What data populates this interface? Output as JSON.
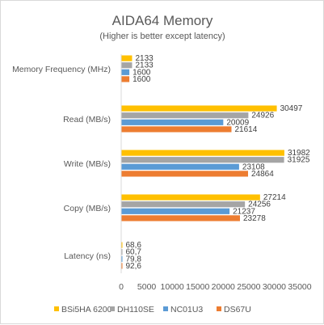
{
  "chart_data": {
    "type": "bar",
    "orientation": "horizontal",
    "title": "AIDA64 Memory",
    "subtitle": "(Higher is better except latency)",
    "categories": [
      "Memory Frequency (MHz)",
      "Read (MB/s)",
      "Write (MB/s)",
      "Copy (MB/s)",
      "Latency (ns)"
    ],
    "series": [
      {
        "name": "BSi5HA 6200",
        "color": "#ffc000",
        "values": [
          2133,
          30497,
          31982,
          27214,
          68.6
        ],
        "labels": [
          "2133",
          "30497",
          "31982",
          "27214",
          "68,6"
        ]
      },
      {
        "name": "DH110SE",
        "color": "#a5a5a5",
        "values": [
          2133,
          24926,
          31925,
          24256,
          60.7
        ],
        "labels": [
          "2133",
          "24926",
          "31925",
          "24256",
          "60,7"
        ]
      },
      {
        "name": "NC01U3",
        "color": "#5b9bd5",
        "values": [
          1600,
          20009,
          23108,
          21237,
          79.8
        ],
        "labels": [
          "1600",
          "20009",
          "23108",
          "21237",
          "79,8"
        ]
      },
      {
        "name": "DS67U",
        "color": "#ed7d31",
        "values": [
          1600,
          21614,
          24864,
          23278,
          92.6
        ],
        "labels": [
          "1600",
          "21614",
          "24864",
          "23278",
          "92,6"
        ]
      }
    ],
    "xlim": [
      0,
      35000
    ],
    "xticks": [
      "0",
      "5000",
      "10000",
      "15000",
      "20000",
      "25000",
      "30000",
      "35000"
    ],
    "grid": false,
    "legend_position": "bottom"
  }
}
